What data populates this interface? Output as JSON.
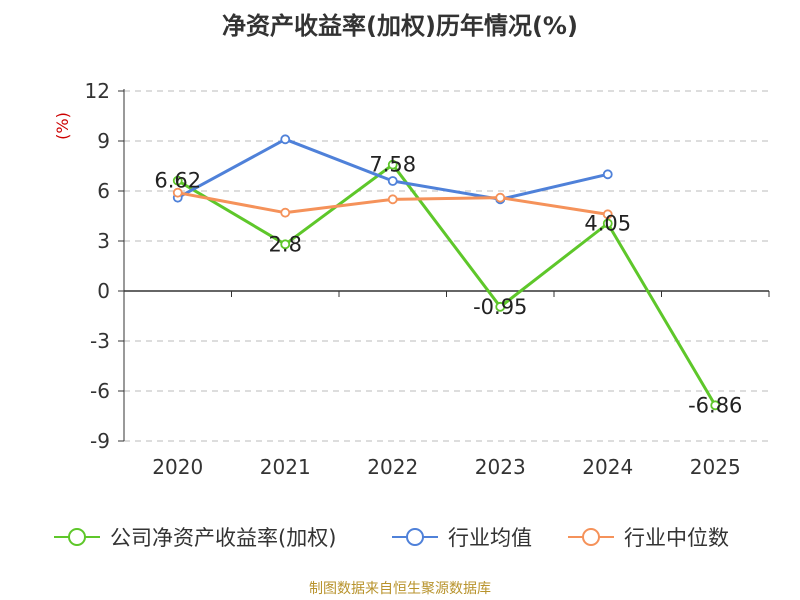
{
  "title": "净资产收益率(加权)历年情况(%)",
  "source": "制图数据来自恒生聚源数据库",
  "colors": {
    "company": "#5ec72a",
    "industry_avg": "#4f81d9",
    "industry_median": "#f5925a",
    "axis": "#333333",
    "grid": "#bbbbbb",
    "unit": "#cc0000"
  },
  "chart_data": {
    "type": "line",
    "categories": [
      "2020",
      "2021",
      "2022",
      "2023",
      "2024",
      "2025"
    ],
    "ylabel": "(%)",
    "ylim": [
      -9,
      12
    ],
    "yticks": [
      12,
      9,
      6,
      3,
      0,
      -3,
      -6,
      -9
    ],
    "grid": true,
    "legend_position": "bottom",
    "series": [
      {
        "name": "公司净资产收益率(加权)",
        "values": [
          6.62,
          2.8,
          7.58,
          -0.95,
          4.05,
          -6.86
        ],
        "labels": [
          "6.62",
          "2.8",
          "7.58",
          "-0.95",
          "4.05",
          "-6.86"
        ]
      },
      {
        "name": "行业均值",
        "values": [
          5.6,
          9.1,
          6.6,
          5.5,
          7.0,
          null
        ]
      },
      {
        "name": "行业中位数",
        "values": [
          5.9,
          4.7,
          5.5,
          5.6,
          4.6,
          null
        ]
      }
    ]
  }
}
